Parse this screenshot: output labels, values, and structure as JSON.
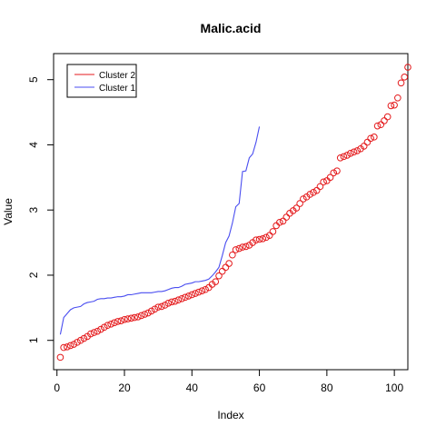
{
  "chart_data": {
    "type": "scatter",
    "title": "Malic.acid",
    "xlabel": "Index",
    "ylabel": "Value",
    "xlim": [
      -1,
      104
    ],
    "ylim": [
      0.55,
      5.4
    ],
    "xticks": [
      "0",
      "20",
      "40",
      "60",
      "80",
      "100"
    ],
    "yticks": [
      "1",
      "2",
      "3",
      "4",
      "5"
    ],
    "grid": false,
    "legend_position": "top-left",
    "series": [
      {
        "name": "Cluster 2",
        "kind": "points",
        "color": "#e41a1c",
        "y": [
          0.74,
          0.89,
          0.9,
          0.92,
          0.94,
          0.97,
          1.0,
          1.03,
          1.06,
          1.1,
          1.12,
          1.14,
          1.17,
          1.2,
          1.23,
          1.25,
          1.27,
          1.29,
          1.3,
          1.32,
          1.33,
          1.34,
          1.35,
          1.36,
          1.38,
          1.4,
          1.42,
          1.45,
          1.48,
          1.51,
          1.52,
          1.54,
          1.57,
          1.59,
          1.6,
          1.62,
          1.64,
          1.66,
          1.68,
          1.7,
          1.72,
          1.74,
          1.76,
          1.78,
          1.81,
          1.86,
          1.9,
          1.99,
          2.06,
          2.12,
          2.18,
          2.31,
          2.39,
          2.41,
          2.43,
          2.44,
          2.46,
          2.5,
          2.54,
          2.55,
          2.56,
          2.58,
          2.61,
          2.67,
          2.76,
          2.81,
          2.83,
          2.89,
          2.95,
          2.99,
          3.03,
          3.1,
          3.17,
          3.2,
          3.24,
          3.27,
          3.3,
          3.36,
          3.43,
          3.45,
          3.5,
          3.57,
          3.6,
          3.8,
          3.82,
          3.84,
          3.87,
          3.89,
          3.91,
          3.94,
          3.98,
          4.04,
          4.1,
          4.12,
          4.29,
          4.31,
          4.37,
          4.43,
          4.6,
          4.61,
          4.72,
          4.95,
          5.04,
          5.19
        ]
      },
      {
        "name": "Cluster 1",
        "kind": "line",
        "color": "#4a4ef0",
        "y": [
          1.09,
          1.35,
          1.41,
          1.47,
          1.5,
          1.51,
          1.52,
          1.56,
          1.58,
          1.59,
          1.6,
          1.63,
          1.64,
          1.64,
          1.65,
          1.65,
          1.66,
          1.67,
          1.67,
          1.68,
          1.7,
          1.7,
          1.71,
          1.72,
          1.73,
          1.73,
          1.73,
          1.73,
          1.74,
          1.75,
          1.75,
          1.76,
          1.78,
          1.8,
          1.81,
          1.81,
          1.83,
          1.86,
          1.87,
          1.88,
          1.9,
          1.9,
          1.91,
          1.92,
          1.94,
          1.99,
          2.05,
          2.12,
          2.3,
          2.5,
          2.6,
          2.8,
          3.05,
          3.1,
          3.59,
          3.6,
          3.8,
          3.86,
          4.04,
          4.28
        ]
      }
    ]
  }
}
